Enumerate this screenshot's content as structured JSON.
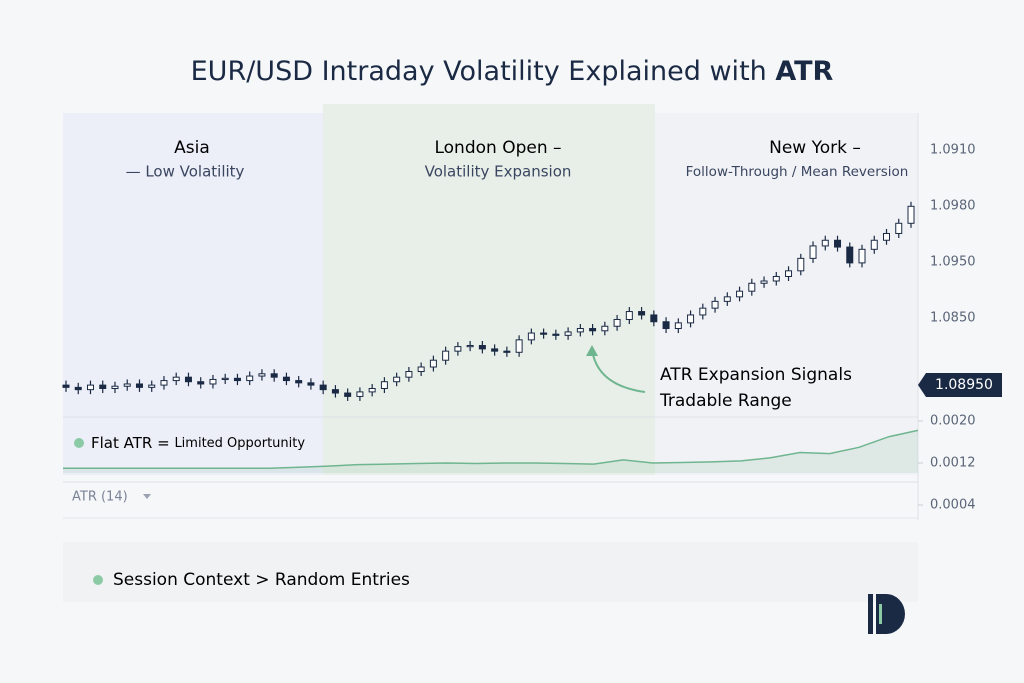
{
  "title_prefix": "EUR/USD Intraday Volatility Explained with ",
  "title_emphasis": "ATR",
  "sessions": [
    {
      "name": "Asia",
      "subtitle": "— Low Volatility"
    },
    {
      "name": "London Open –",
      "subtitle": "Volatility Expansion"
    },
    {
      "name": "New York –",
      "subtitle": "Follow-Through / Mean Reversion"
    }
  ],
  "price_axis_labels": [
    "1.0910",
    "1.0980",
    "1.0950",
    "1.0850"
  ],
  "current_price_label": "1.08950",
  "annotation_lines": [
    "ATR Expansion Signals",
    "Tradable Range"
  ],
  "atr_note": {
    "lead": "Flat ATR =",
    "rest": "Limited Opportunity"
  },
  "indicator_selector": "ATR (14)",
  "footer_note": "Session Context > Random Entries",
  "chart_data": [
    {
      "type": "candlestick",
      "ylim": [
        1.08,
        1.099
      ],
      "up_color": "#ffffff",
      "down_color": "#1b2a44",
      "open": [
        1.0822,
        1.082,
        1.0818,
        1.0822,
        1.0819,
        1.0821,
        1.0823,
        1.082,
        1.0822,
        1.0826,
        1.0829,
        1.0825,
        1.0823,
        1.0827,
        1.0828,
        1.0826,
        1.083,
        1.0832,
        1.0829,
        1.0826,
        1.0824,
        1.0822,
        1.0818,
        1.0815,
        1.0812,
        1.0816,
        1.0819,
        1.0825,
        1.0829,
        1.0834,
        1.0838,
        1.0844,
        1.0852,
        1.0856,
        1.0857,
        1.0854,
        1.0852,
        1.0851,
        1.0862,
        1.0868,
        1.0867,
        1.0866,
        1.0869,
        1.0872,
        1.087,
        1.0874,
        1.088,
        1.0887,
        1.0884,
        1.0878,
        1.0872,
        1.0877,
        1.0884,
        1.089,
        1.0896,
        1.09,
        1.0905,
        1.0912,
        1.0914,
        1.0918,
        1.0923,
        1.0934,
        1.0945,
        1.095,
        1.0944,
        1.093,
        1.0942,
        1.095,
        1.0956,
        1.0965
      ],
      "high": [
        1.0826,
        1.0824,
        1.0826,
        1.0826,
        1.0825,
        1.0827,
        1.0827,
        1.0826,
        1.083,
        1.0833,
        1.0833,
        1.0829,
        1.0831,
        1.0832,
        1.0832,
        1.0834,
        1.0836,
        1.0836,
        1.0833,
        1.083,
        1.0828,
        1.0826,
        1.0822,
        1.0819,
        1.082,
        1.0823,
        1.0829,
        1.0833,
        1.0838,
        1.0842,
        1.0848,
        1.0856,
        1.086,
        1.0861,
        1.0861,
        1.0858,
        1.0856,
        1.0866,
        1.0872,
        1.0872,
        1.0871,
        1.0873,
        1.0876,
        1.0876,
        1.0878,
        1.0884,
        1.0891,
        1.0891,
        1.0888,
        1.0882,
        1.0881,
        1.0888,
        1.0894,
        1.09,
        1.0904,
        1.0909,
        1.0916,
        1.0918,
        1.0922,
        1.0927,
        1.0938,
        1.0949,
        1.0954,
        1.0954,
        1.0948,
        1.0946,
        1.0954,
        1.096,
        1.0969,
        1.0984
      ],
      "low": [
        1.0816,
        1.0814,
        1.0814,
        1.0815,
        1.0815,
        1.0817,
        1.0816,
        1.0816,
        1.0818,
        1.0822,
        1.0821,
        1.0819,
        1.0819,
        1.0823,
        1.0822,
        1.0822,
        1.0826,
        1.0825,
        1.0822,
        1.082,
        1.0818,
        1.0814,
        1.0811,
        1.0808,
        1.0808,
        1.0812,
        1.0815,
        1.0821,
        1.0825,
        1.083,
        1.0834,
        1.084,
        1.0848,
        1.0852,
        1.085,
        1.0848,
        1.0847,
        1.0847,
        1.0858,
        1.0863,
        1.0862,
        1.0862,
        1.0865,
        1.0866,
        1.0866,
        1.087,
        1.0876,
        1.088,
        1.0874,
        1.0868,
        1.0868,
        1.0873,
        1.088,
        1.0886,
        1.0892,
        1.0896,
        1.0901,
        1.0908,
        1.091,
        1.0914,
        1.0919,
        1.093,
        1.0941,
        1.094,
        1.0926,
        1.0926,
        1.0938,
        1.0946,
        1.0952,
        1.0961
      ],
      "close": [
        1.082,
        1.0818,
        1.0822,
        1.0819,
        1.0821,
        1.0823,
        1.082,
        1.0822,
        1.0826,
        1.0829,
        1.0825,
        1.0823,
        1.0827,
        1.0828,
        1.0826,
        1.083,
        1.0832,
        1.0829,
        1.0826,
        1.0824,
        1.0822,
        1.0818,
        1.0815,
        1.0812,
        1.0816,
        1.0819,
        1.0825,
        1.0829,
        1.0834,
        1.0838,
        1.0844,
        1.0852,
        1.0856,
        1.0857,
        1.0854,
        1.0852,
        1.0851,
        1.0862,
        1.0868,
        1.0867,
        1.0866,
        1.0869,
        1.0872,
        1.087,
        1.0874,
        1.088,
        1.0887,
        1.0884,
        1.0878,
        1.0872,
        1.0877,
        1.0884,
        1.089,
        1.0896,
        1.09,
        1.0905,
        1.0912,
        1.0914,
        1.0918,
        1.0923,
        1.0934,
        1.0945,
        1.095,
        1.0944,
        1.093,
        1.0942,
        1.095,
        1.0956,
        1.0965,
        1.098
      ]
    },
    {
      "type": "area",
      "color": "#6fb58f",
      "ylim": [
        0.0004,
        0.002
      ],
      "yticks": [
        {
          "value": 0.002,
          "label": "0.0020"
        },
        0.0012,
        0.0004
      ],
      "values": [
        0.0011,
        0.0011,
        0.0011,
        0.0011,
        0.0011,
        0.0011,
        0.0011,
        0.0011,
        0.00112,
        0.00114,
        0.00117,
        0.00118,
        0.00119,
        0.0012,
        0.00119,
        0.0012,
        0.0012,
        0.00119,
        0.00118,
        0.00126,
        0.0012,
        0.00121,
        0.00122,
        0.00124,
        0.0013,
        0.0014,
        0.00138,
        0.0015,
        0.0017,
        0.00182
      ]
    }
  ]
}
